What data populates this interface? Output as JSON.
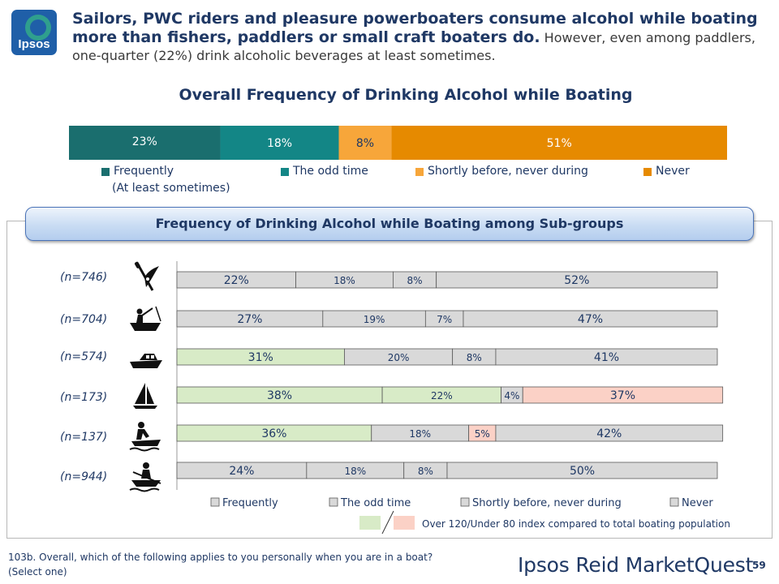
{
  "logo": {
    "text": "Ipsos"
  },
  "headline": {
    "bold": "Sailors, PWC riders and pleasure powerboaters consume alcohol while boating more than fishers, paddlers or small craft boaters do.",
    "normal": "However, even among paddlers, one-quarter (22%) drink alcoholic beverages at least sometimes."
  },
  "colors": {
    "frequently": "#1a6e6e",
    "odd_time": "#138686",
    "shortly_before": "#f7a63a",
    "never": "#e68a00",
    "sub_base": "#d9d9d9",
    "over_index": "#d8ebc7",
    "under_index": "#fbd1c6"
  },
  "chart_data": [
    {
      "type": "bar",
      "orientation": "horizontal-stacked",
      "title": "Overall Frequency of Drinking Alcohol while Boating",
      "xlim": [
        0,
        100
      ],
      "categories": [
        "Overall"
      ],
      "series": [
        {
          "name": "Frequently (At least sometimes)",
          "values": [
            23
          ],
          "label": "23%"
        },
        {
          "name": "The odd time",
          "values": [
            18
          ],
          "label": "18%"
        },
        {
          "name": "Shortly before, never during",
          "values": [
            8
          ],
          "label": "8%"
        },
        {
          "name": "Never",
          "values": [
            51
          ],
          "label": "51%"
        }
      ],
      "legend": {
        "position": "bottom",
        "items": [
          {
            "line1": "Frequently",
            "line2": "(At least sometimes)"
          },
          {
            "line1": "The odd time"
          },
          {
            "line1": "Shortly before, never during"
          },
          {
            "line1": "Never"
          }
        ]
      }
    },
    {
      "type": "bar",
      "orientation": "horizontal-stacked",
      "title": "Frequency of Drinking Alcohol while Boating among Sub-groups",
      "xlim": [
        0,
        100
      ],
      "categories": [
        "(n=746)",
        "(n=704)",
        "(n=574)",
        "(n=173)",
        "(n=137)",
        "(n=944)"
      ],
      "group_icons": [
        "paddle-kayak-icon",
        "fishing-boat-icon",
        "powerboat-icon",
        "sailboat-icon",
        "pwc-rider-icon",
        "small-craft-rower-icon"
      ],
      "series": [
        {
          "name": "Frequently",
          "values": [
            22,
            27,
            31,
            38,
            36,
            24
          ],
          "labels": [
            "22%",
            "27%",
            "31%",
            "38%",
            "36%",
            "24%"
          ]
        },
        {
          "name": "The odd time",
          "values": [
            18,
            19,
            20,
            22,
            18,
            18
          ],
          "labels": [
            "18%",
            "19%",
            "20%",
            "22%",
            "18%",
            "18%"
          ]
        },
        {
          "name": "Shortly before, never during",
          "values": [
            8,
            7,
            8,
            4,
            5,
            8
          ],
          "labels": [
            "8%",
            "7%",
            "8%",
            "4%",
            "5%",
            "8%"
          ]
        },
        {
          "name": "Never",
          "values": [
            52,
            47,
            41,
            37,
            42,
            50
          ],
          "labels": [
            "52%",
            "47%",
            "41%",
            "37%",
            "42%",
            "50%"
          ]
        }
      ],
      "highlight": [
        [
          "base",
          "base",
          "base",
          "base"
        ],
        [
          "base",
          "base",
          "base",
          "base"
        ],
        [
          "over",
          "base",
          "base",
          "base"
        ],
        [
          "over",
          "over",
          "base",
          "under"
        ],
        [
          "over",
          "base",
          "under",
          "base"
        ],
        [
          "base",
          "base",
          "base",
          "base"
        ]
      ],
      "legend": {
        "position": "bottom",
        "items": [
          "Frequently",
          "The odd time",
          "Shortly before, never during",
          "Never"
        ]
      },
      "index_note": "Over 120/Under 80 index compared to total boating population"
    }
  ],
  "footer": {
    "question_line1": "103b. Overall, which of the following applies to you personally when you are in a boat?",
    "question_line2": "(Select one)",
    "brand": "Ipsos Reid MarketQuest",
    "page": "59"
  }
}
